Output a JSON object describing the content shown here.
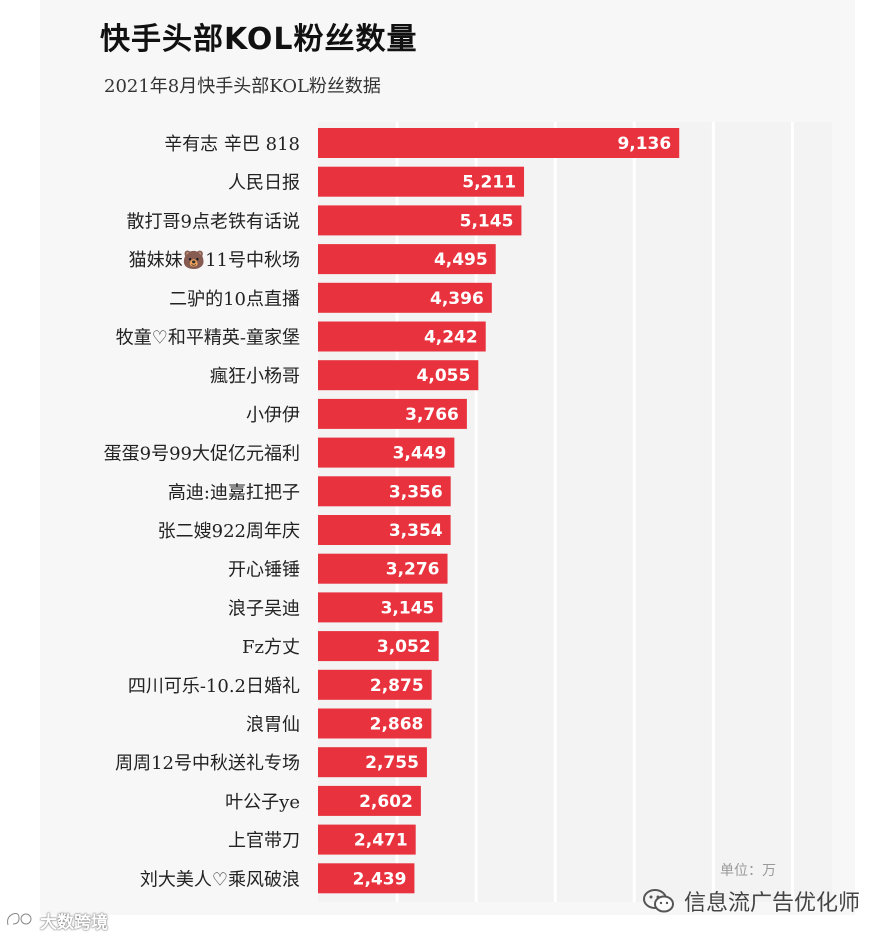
{
  "chart_data": {
    "type": "bar",
    "orientation": "horizontal",
    "title": "快手头部KOL粉丝数量",
    "subtitle": "2021年8月快手头部KOL粉丝数据",
    "unit_note": "单位：万",
    "categories": [
      "辛有志 辛巴 818",
      "人民日报",
      "散打哥9点老铁有话说",
      "猫妹妹🐻11号中秋场",
      "二驴的10点直播",
      "牧童♡和平精英-童家堡",
      "瘋狂小杨哥",
      "小伊伊",
      "蛋蛋9号99大促亿元福利",
      "高迪:迪嘉扛把子",
      "张二嫂922周年庆",
      "开心锤锤",
      "浪子吴迪",
      "Fz方丈",
      "四川可乐-10.2日婚礼",
      "浪胃仙",
      "周周12号中秋送礼专场",
      "叶公子ye",
      "上官带刀",
      "刘大美人♡乘风破浪"
    ],
    "values": [
      9136,
      5211,
      5145,
      4495,
      4396,
      4242,
      4055,
      3766,
      3449,
      3356,
      3354,
      3276,
      3145,
      3052,
      2875,
      2868,
      2755,
      2602,
      2471,
      2439
    ],
    "value_labels": [
      "9,136",
      "5,211",
      "5,145",
      "4,495",
      "4,396",
      "4,242",
      "4,055",
      "3,766",
      "3,449",
      "3,356",
      "3,354",
      "3,276",
      "3,145",
      "3,052",
      "2,875",
      "2,868",
      "2,755",
      "2,602",
      "2,471",
      "2,439"
    ],
    "xlim": [
      0,
      13000
    ],
    "grid": true,
    "legend": "none",
    "colors": {
      "bar": "#e8333f",
      "bar_label": "#ffffff",
      "category_label": "#222222",
      "grid": "#ffffff"
    }
  },
  "watermarks": {
    "right_text": "信息流广告优化师",
    "right_icon": "wechat-icon",
    "left_text": "大数跨境",
    "left_icon": "brand-logo-icon"
  }
}
